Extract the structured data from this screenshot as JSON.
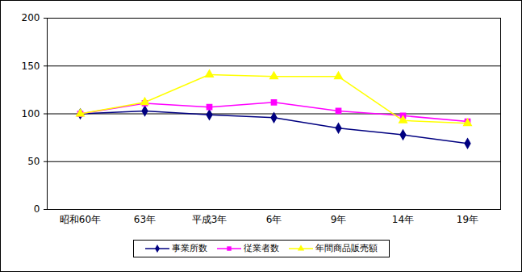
{
  "chart_data": {
    "type": "line",
    "categories": [
      "昭和60年",
      "63年",
      "平成3年",
      "6年",
      "9年",
      "14年",
      "19年"
    ],
    "series": [
      {
        "name": "事業所数",
        "color": "#000080",
        "marker": "diamond",
        "values": [
          100,
          103,
          99,
          96,
          85,
          78,
          69
        ]
      },
      {
        "name": "従業者数",
        "color": "#ff00ff",
        "marker": "square",
        "values": [
          100,
          111,
          107,
          112,
          103,
          98,
          92
        ]
      },
      {
        "name": "年間商品販売額",
        "color": "#ffff00",
        "marker": "triangle",
        "values": [
          100,
          112,
          141,
          139,
          139,
          93,
          90
        ]
      }
    ],
    "ylim": [
      0,
      200
    ],
    "yticks": [
      0,
      50,
      100,
      150,
      200
    ],
    "grid": true,
    "legend": "bottom"
  }
}
